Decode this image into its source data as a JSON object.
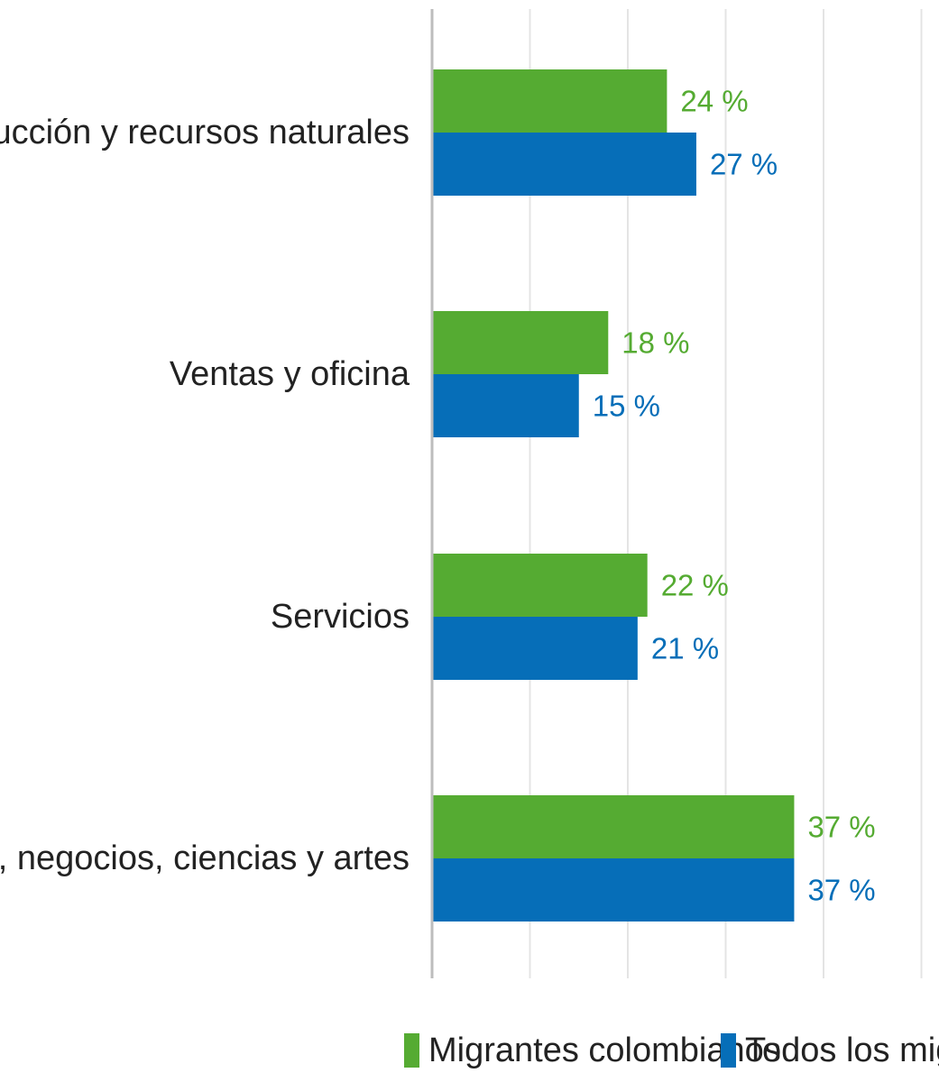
{
  "chart_data": {
    "type": "bar",
    "orientation": "horizontal",
    "categories": [
      "Construcción y recursos naturales",
      "Ventas y oficina",
      "Servicios",
      "Administración, negocios, ciencias y artes"
    ],
    "series": [
      {
        "name": "Migrantes colombianos",
        "color": "#55ab32",
        "values": [
          24,
          18,
          22,
          37
        ],
        "labels": [
          "24 %",
          "18 %",
          "22 %",
          "37 %"
        ]
      },
      {
        "name": "Todos los migrantes",
        "color": "#066eb8",
        "values": [
          27,
          15,
          21,
          37
        ],
        "labels": [
          "27 %",
          "15 %",
          "21 %",
          "37 %"
        ]
      }
    ],
    "xlim": [
      0,
      50
    ],
    "grid": true,
    "legend_position": "bottom-right",
    "tick_labels_shown": false
  }
}
